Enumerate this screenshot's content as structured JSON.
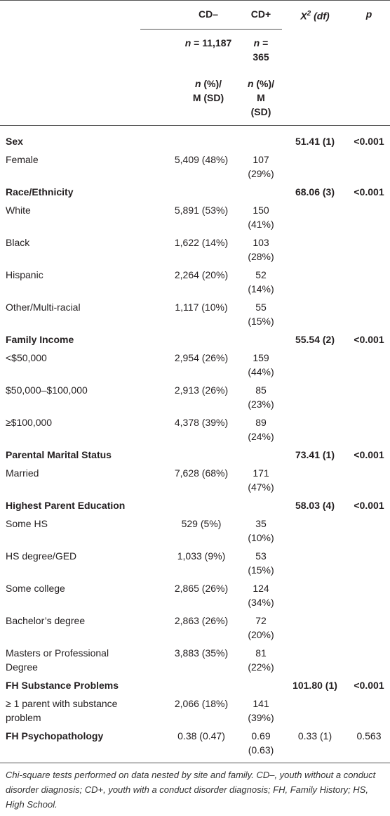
{
  "header": {
    "cd_minus": "CD–",
    "cd_plus": "CD+",
    "chi": {
      "symbol": "X",
      "sup": "2",
      "rest": "(df)"
    },
    "p": "p",
    "n_minus": {
      "var": "n",
      "rest": "= 11,187"
    },
    "n_plus": {
      "var": "n",
      "rest": "= 365"
    },
    "stat_minus": {
      "var": "n",
      "rest": "(%)/",
      "line2": "M (SD)"
    },
    "stat_plus": {
      "var": "n",
      "rest": "(%)/",
      "line2": "M (SD)"
    }
  },
  "sections": [
    {
      "label": "Sex",
      "chi": "51.41 (1)",
      "p": "<0.001",
      "rows": [
        [
          "Female",
          "5,409 (48%)",
          "107 (29%)"
        ]
      ]
    },
    {
      "label": "Race/Ethnicity",
      "chi": "68.06 (3)",
      "p": "<0.001",
      "rows": [
        [
          "White",
          "5,891 (53%)",
          "150 (41%)"
        ],
        [
          "Black",
          "1,622 (14%)",
          "103 (28%)"
        ],
        [
          "Hispanic",
          "2,264 (20%)",
          "52 (14%)"
        ],
        [
          "Other/Multi-racial",
          "1,117 (10%)",
          "55 (15%)"
        ]
      ]
    },
    {
      "label": "Family Income",
      "chi": "55.54 (2)",
      "p": "<0.001",
      "rows": [
        [
          "<$50,000",
          "2,954 (26%)",
          "159 (44%)"
        ],
        [
          "$50,000–$100,000",
          "2,913 (26%)",
          "85 (23%)"
        ],
        [
          "≥$100,000",
          "4,378 (39%)",
          "89 (24%)"
        ]
      ]
    },
    {
      "label": "Parental Marital Status",
      "chi": "73.41 (1)",
      "p": "<0.001",
      "rows": [
        [
          "Married",
          "7,628 (68%)",
          "171 (47%)"
        ]
      ]
    },
    {
      "label": "Highest Parent Education",
      "chi": "58.03 (4)",
      "p": "<0.001",
      "rows": [
        [
          "Some HS",
          "529 (5%)",
          "35 (10%)"
        ],
        [
          "HS degree/GED",
          "1,033 (9%)",
          "53 (15%)"
        ],
        [
          "Some college",
          "2,865 (26%)",
          "124 (34%)"
        ],
        [
          "Bachelor’s degree",
          "2,863 (26%)",
          "72 (20%)"
        ],
        [
          "Masters or Professional Degree",
          "3,883 (35%)",
          "81 (22%)"
        ]
      ]
    },
    {
      "label": "FH Substance Problems",
      "chi": "101.80 (1)",
      "p": "<0.001",
      "rows": [
        [
          "≥ 1 parent with substance problem",
          "2,066 (18%)",
          "141 (39%)"
        ]
      ]
    },
    {
      "label": "FH Psychopathology",
      "cd_minus": "0.38 (0.47)",
      "cd_plus": "0.69 (0.63)",
      "chi_plain": "0.33 (1)",
      "p_plain": "0.563",
      "rows": []
    }
  ],
  "footnote": "Chi-square tests performed on data nested by site and family. CD–, youth without a conduct disorder diagnosis; CD+, youth with a conduct disorder diagnosis; FH, Family History; HS, High School."
}
